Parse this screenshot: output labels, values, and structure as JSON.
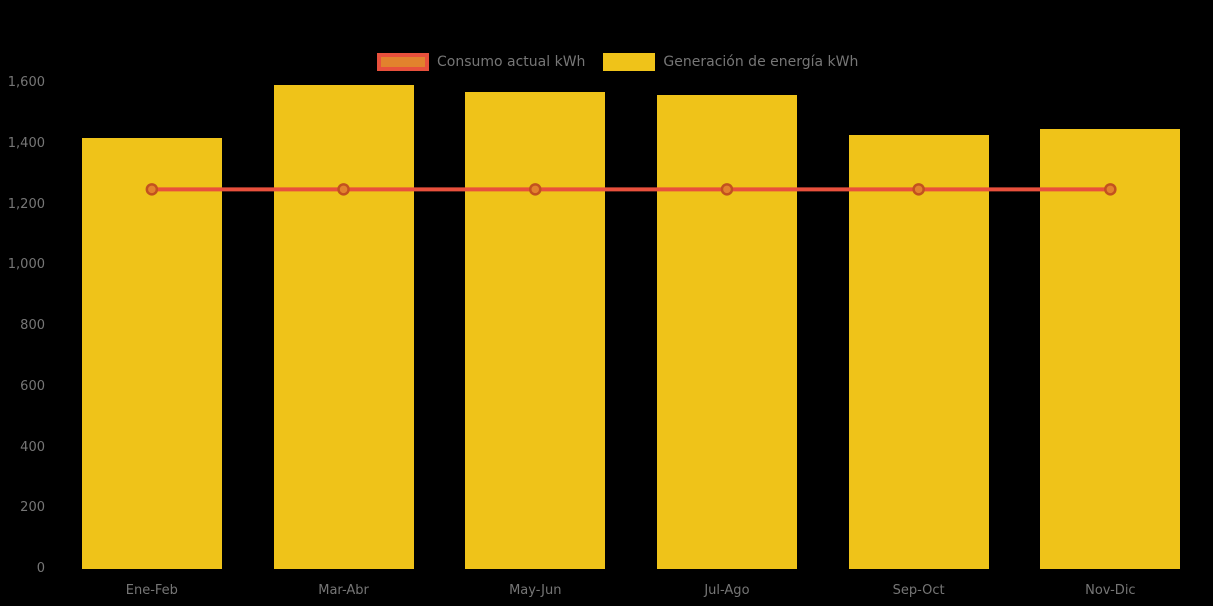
{
  "chart_data": {
    "type": "combo",
    "title": "",
    "categories": [
      "Ene-Feb",
      "Mar-Abr",
      "May-Jun",
      "Jul-Ago",
      "Sep-Oct",
      "Nov-Dic"
    ],
    "series": [
      {
        "name": "Consumo actual kWh",
        "type": "line",
        "values": [
          1250,
          1250,
          1250,
          1250,
          1250,
          1250
        ]
      },
      {
        "name": "Generación de energía kWh",
        "type": "bar",
        "values": [
          1420,
          1595,
          1570,
          1560,
          1430,
          1450
        ]
      }
    ],
    "xlabel": "",
    "ylabel": "",
    "ylim": [
      0,
      1600
    ],
    "yticks": [
      0,
      200,
      400,
      600,
      800,
      1000,
      1200,
      1400,
      1600
    ],
    "ytick_labels": [
      "0",
      "200",
      "400",
      "600",
      "800",
      "1,000",
      "1,200",
      "1,400",
      "1,600"
    ],
    "grid": "off",
    "legend_position": "top",
    "colors": {
      "background": "#000000",
      "bar": "#EFC319",
      "line": "#E8503C",
      "marker_fill": "#E2822D",
      "marker_stroke": "#C2511F",
      "axis_text": "#767676"
    }
  }
}
